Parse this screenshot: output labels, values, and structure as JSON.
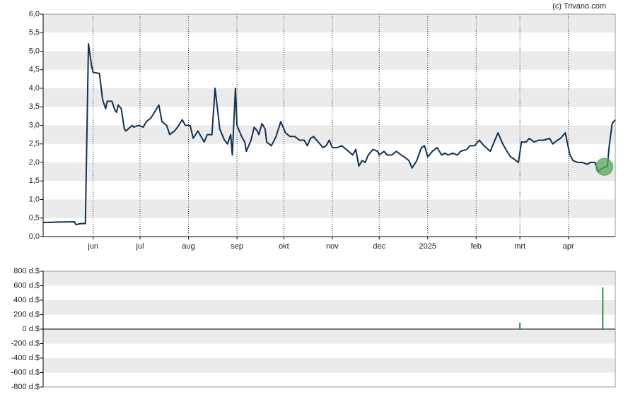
{
  "credit": "(c) Trivano.com",
  "chart_data": [
    {
      "type": "line",
      "x": [
        0,
        9,
        20,
        21,
        24,
        27,
        29,
        31,
        32,
        36,
        38,
        40,
        41,
        44,
        46,
        47,
        48,
        50,
        52,
        53,
        57,
        58,
        61,
        64,
        66,
        69,
        74,
        76,
        79,
        81,
        84,
        86,
        89,
        91,
        94,
        96,
        99,
        101,
        103,
        105,
        108,
        110,
        113,
        116,
        118,
        120,
        121,
        123,
        124,
        127,
        129,
        130,
        133,
        135,
        137,
        138,
        140,
        142,
        143,
        146,
        149,
        152,
        155,
        158,
        161,
        164,
        167,
        169,
        171,
        173,
        176,
        179,
        181,
        183,
        185,
        188,
        191,
        194,
        198,
        200,
        202,
        204,
        206,
        208,
        211,
        214,
        215,
        218,
        220,
        223,
        226,
        229,
        231,
        234,
        236,
        239,
        242,
        244,
        246,
        249,
        252,
        255,
        257,
        259,
        262,
        265,
        267,
        271,
        273,
        276,
        279,
        282,
        286,
        289,
        291,
        294,
        296,
        299,
        301,
        304,
        306,
        309,
        311,
        314,
        317,
        320,
        324,
        326,
        329,
        331,
        334,
        335,
        337,
        339,
        342,
        345,
        348,
        350,
        353,
        355,
        358,
        361,
        362,
        364,
        366
      ],
      "values": [
        0.38,
        0.39,
        0.4,
        0.32,
        0.35,
        0.35,
        5.2,
        4.6,
        4.43,
        4.4,
        3.7,
        3.45,
        3.65,
        3.65,
        3.4,
        3.35,
        3.55,
        3.45,
        2.9,
        2.85,
        3.0,
        2.95,
        3.0,
        2.95,
        3.1,
        3.2,
        3.55,
        3.1,
        3.0,
        2.75,
        2.85,
        2.95,
        3.15,
        3.0,
        3.0,
        2.65,
        2.85,
        2.7,
        2.55,
        2.75,
        2.75,
        4.0,
        2.9,
        2.6,
        2.5,
        2.75,
        2.2,
        4.0,
        3.0,
        2.7,
        2.55,
        2.3,
        2.6,
        2.95,
        2.85,
        2.75,
        3.05,
        2.9,
        2.55,
        2.45,
        2.7,
        3.1,
        2.8,
        2.7,
        2.7,
        2.6,
        2.6,
        2.45,
        2.65,
        2.7,
        2.55,
        2.4,
        2.45,
        2.6,
        2.4,
        2.4,
        2.45,
        2.35,
        2.2,
        2.35,
        1.9,
        2.05,
        2.0,
        2.2,
        2.35,
        2.3,
        2.2,
        2.3,
        2.2,
        2.2,
        2.3,
        2.2,
        2.15,
        2.05,
        1.85,
        2.05,
        2.4,
        2.45,
        2.15,
        2.3,
        2.4,
        2.2,
        2.25,
        2.2,
        2.25,
        2.2,
        2.3,
        2.35,
        2.45,
        2.45,
        2.6,
        2.45,
        2.3,
        2.6,
        2.8,
        2.5,
        2.35,
        2.15,
        2.1,
        2.0,
        2.55,
        2.55,
        2.65,
        2.55,
        2.6,
        2.6,
        2.65,
        2.5,
        2.6,
        2.65,
        2.8,
        2.6,
        2.2,
        2.05,
        2.0,
        2.0,
        1.95,
        2.0,
        2.0,
        1.75,
        1.85,
        1.9,
        2.4,
        3.05,
        3.15
      ],
      "color": "#12324f",
      "xlim": [
        0,
        366
      ],
      "xticks": [
        {
          "value": 32,
          "label": "jun"
        },
        {
          "value": 62,
          "label": "jul"
        },
        {
          "value": 93,
          "label": "aug"
        },
        {
          "value": 124,
          "label": "sep"
        },
        {
          "value": 154,
          "label": "okt"
        },
        {
          "value": 185,
          "label": "nov"
        },
        {
          "value": 215,
          "label": "dec"
        },
        {
          "value": 246,
          "label": "2025"
        },
        {
          "value": 277,
          "label": "feb"
        },
        {
          "value": 305,
          "label": "mrt"
        },
        {
          "value": 336,
          "label": "apr"
        }
      ],
      "ylim": [
        0,
        6
      ],
      "yticks": [
        {
          "value": 0,
          "label": "0,0"
        },
        {
          "value": 0.5,
          "label": "0,5"
        },
        {
          "value": 1,
          "label": "1,0"
        },
        {
          "value": 1.5,
          "label": "1,5"
        },
        {
          "value": 2,
          "label": "2,0"
        },
        {
          "value": 2.5,
          "label": "2,5"
        },
        {
          "value": 3,
          "label": "3,0"
        },
        {
          "value": 3.5,
          "label": "3,5"
        },
        {
          "value": 4,
          "label": "4,0"
        },
        {
          "value": 4.5,
          "label": "4,5"
        },
        {
          "value": 5,
          "label": "5,0"
        },
        {
          "value": 5.5,
          "label": "5,5"
        },
        {
          "value": 6,
          "label": "6,0"
        }
      ],
      "highlight": {
        "x": 359,
        "y": 1.88,
        "color": "#5aa55a"
      }
    },
    {
      "type": "bar",
      "x": [
        237,
        305,
        358
      ],
      "values": [
        -4,
        87,
        578
      ],
      "color": "#2e8b3e",
      "xlim": [
        0,
        366
      ],
      "ylim": [
        -800,
        800
      ],
      "yticks": [
        {
          "value": 800,
          "label": "800 d.$"
        },
        {
          "value": 600,
          "label": "600 d.$"
        },
        {
          "value": 400,
          "label": "400 d.$"
        },
        {
          "value": 200,
          "label": "200 d.$"
        },
        {
          "value": 0,
          "label": "0 d.$"
        },
        {
          "value": -200,
          "label": "-200 d.$"
        },
        {
          "value": -400,
          "label": "-400 d.$"
        },
        {
          "value": -600,
          "label": "-600 d.$"
        },
        {
          "value": -800,
          "label": "-800 d.$"
        }
      ]
    }
  ]
}
